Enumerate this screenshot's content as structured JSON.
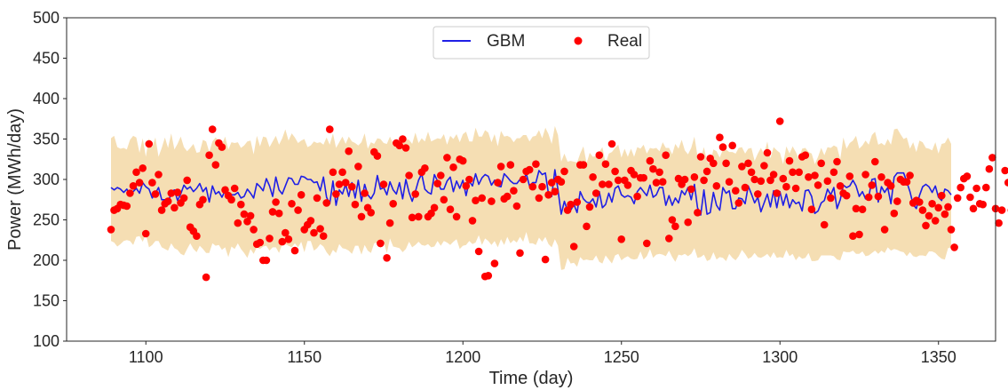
{
  "chart_data": {
    "type": "line",
    "title": "",
    "xlabel": "Time (day)",
    "ylabel": "Power (MWh/day)",
    "xlim": [
      1075,
      1368
    ],
    "ylim": [
      100,
      500
    ],
    "xticks": [
      1100,
      1150,
      1200,
      1250,
      1300,
      1350
    ],
    "yticks": [
      100,
      150,
      200,
      250,
      300,
      350,
      400,
      450,
      500
    ],
    "grid": false,
    "legend_position": "top-center",
    "colors": {
      "gbm": "#1f1fe6",
      "real": "#ff0000",
      "band": "#f5deb3"
    },
    "series": [
      {
        "name": "GBM",
        "kind": "line",
        "x_start": 1089,
        "x_step": 1,
        "values": [
          290,
          287,
          290,
          288,
          284,
          288,
          281,
          285,
          289,
          283,
          296,
          291,
          288,
          277,
          283,
          290,
          275,
          275,
          269,
          285,
          287,
          274,
          282,
          293,
          288,
          291,
          285,
          289,
          295,
          285,
          290,
          272,
          292,
          282,
          285,
          278,
          286,
          279,
          281,
          281,
          284,
          277,
          279,
          288,
          283,
          277,
          295,
          291,
          286,
          301,
          292,
          279,
          303,
          287,
          282,
          292,
          302,
          301,
          294,
          294,
          304,
          303,
          300,
          300,
          296,
          297,
          286,
          303,
          278,
          270,
          298,
          268,
          287,
          282,
          294,
          279,
          296,
          277,
          299,
          273,
          294,
          281,
          276,
          283,
          305,
          288,
          290,
          281,
          297,
          287,
          282,
          296,
          276,
          300,
          284,
          273,
          285,
          299,
          307,
          288,
          284,
          282,
          306,
          298,
          288,
          288,
          298,
          303,
          285,
          298,
          289,
          299,
          280,
          298,
          292,
          307,
          294,
          302,
          306,
          304,
          293,
          299,
          292,
          291,
          307,
          303,
          298,
          295,
          295,
          300,
          298,
          307,
          292,
          296,
          296,
          311,
          306,
          308,
          282,
          279,
          312,
          287,
          257,
          273,
          261,
          262,
          269,
          259,
          285,
          276,
          272,
          271,
          276,
          266,
          285,
          265,
          269,
          283,
          272,
          289,
          292,
          281,
          278,
          280,
          278,
          270,
          285,
          290,
          285,
          280,
          293,
          278,
          281,
          290,
          290,
          268,
          280,
          268,
          277,
          271,
          286,
          281,
          290,
          275,
          294,
          265,
          256,
          287,
          257,
          259,
          284,
          268,
          262,
          290,
          283,
          286,
          264,
          264,
          277,
          276,
          270,
          292,
          282,
          271,
          278,
          260,
          271,
          282,
          266,
          286,
          265,
          285,
          268,
          282,
          265,
          275,
          270,
          272,
          261,
          286,
          287,
          279,
          258,
          261,
          271,
          274,
          288,
          281,
          290,
          264,
          275,
          293,
          290,
          292,
          299,
          292,
          279,
          285,
          276,
          278,
          300,
          301,
          272,
          291,
          284,
          290,
          270,
          303,
          308,
          308,
          308,
          297,
          285,
          269,
          264,
          280,
          291,
          294,
          291,
          284,
          292,
          278,
          274,
          288,
          286,
          281
        ]
      },
      {
        "name": "Real",
        "kind": "scatter",
        "x_start": 1089,
        "x_step": 1,
        "values": [
          238,
          262,
          264,
          269,
          268,
          267,
          283,
          292,
          309,
          296,
          314,
          233,
          344,
          296,
          282,
          306,
          262,
          270,
          273,
          283,
          265,
          284,
          271,
          277,
          299,
          241,
          236,
          230,
          269,
          275,
          179,
          330,
          362,
          318,
          345,
          340,
          287,
          280,
          275,
          289,
          246,
          269,
          257,
          248,
          255,
          238,
          220,
          222,
          200,
          200,
          227,
          260,
          272,
          258,
          223,
          234,
          226,
          270,
          212,
          262,
          281,
          238,
          244,
          249,
          234,
          277,
          239,
          230,
          271,
          362,
          309,
          282,
          294,
          309,
          296,
          335,
          291,
          269,
          316,
          254,
          283,
          265,
          259,
          334,
          329,
          221,
          294,
          203,
          246,
          270,
          345,
          342,
          350,
          339,
          305,
          253,
          282,
          254,
          309,
          314,
          254,
          258,
          265,
          295,
          305,
          275,
          327,
          263,
          315,
          254,
          325,
          323,
          292,
          300,
          249,
          274,
          211,
          277,
          180,
          181,
          273,
          196,
          296,
          316,
          276,
          279,
          318,
          286,
          267,
          209,
          300,
          310,
          312,
          291,
          319,
          277,
          291,
          201,
          281,
          296,
          285,
          300,
          297,
          310,
          262,
          269,
          217,
          272,
          318,
          318,
          242,
          266,
          303,
          283,
          330,
          294,
          319,
          294,
          344,
          310,
          299,
          226,
          299,
          293,
          311,
          306,
          279,
          302,
          302,
          221,
          323,
          313,
          296,
          309,
          297,
          330,
          227,
          250,
          242,
          301,
          294,
          300,
          247,
          288,
          303,
          259,
          328,
          299,
          310,
          326,
          320,
          292,
          352,
          340,
          320,
          297,
          342,
          286,
          271,
          316,
          290,
          320,
          309,
          300,
          282,
          298,
          317,
          333,
          299,
          306,
          283,
          372,
          301,
          291,
          323,
          309,
          289,
          309,
          328,
          330,
          303,
          263,
          305,
          293,
          320,
          244,
          298,
          277,
          309,
          322,
          292,
          283,
          280,
          304,
          230,
          264,
          232,
          263,
          306,
          278,
          293,
          322,
          279,
          303,
          238,
          296,
          292,
          258,
          273,
          300,
          297,
          297,
          305,
          271,
          274,
          272,
          262,
          243,
          255,
          270,
          249,
          265,
          280,
          257,
          266,
          238,
          216,
          277,
          290,
          301,
          304,
          278,
          264,
          289,
          270,
          269,
          290,
          313,
          327,
          264,
          246,
          262,
          311,
          296,
          262,
          302,
          310,
          250,
          273,
          286,
          300,
          268,
          278,
          298,
          226,
          215,
          260,
          254,
          303,
          245,
          253,
          313,
          300,
          240,
          259,
          282,
          288,
          298,
          294,
          301,
          277,
          248,
          291,
          257,
          321,
          239,
          298,
          289,
          305,
          250,
          276,
          313,
          235,
          201,
          300,
          287,
          353,
          249,
          327,
          253,
          243,
          247,
          199,
          241,
          235,
          285,
          263,
          230,
          262,
          255,
          287,
          252,
          258,
          280,
          260,
          297,
          289,
          301,
          271,
          290,
          291,
          277,
          224,
          269,
          308,
          226,
          262,
          289,
          279,
          301,
          274,
          236,
          244,
          243,
          274,
          320,
          282,
          268,
          228,
          248,
          263,
          339,
          321,
          282,
          227,
          279,
          256,
          279,
          226,
          240,
          289,
          262,
          244,
          268,
          295,
          303,
          292,
          271,
          231,
          208,
          239,
          299,
          264,
          250,
          226,
          276,
          298,
          273,
          280,
          288,
          268,
          172,
          231,
          299,
          253,
          249,
          230,
          277,
          279,
          250,
          282,
          304,
          221,
          263,
          280,
          267,
          266,
          242,
          265,
          231,
          260,
          250,
          274,
          271,
          280,
          247,
          321,
          300,
          276,
          278,
          321,
          289,
          277,
          248,
          242,
          276,
          312,
          263,
          273,
          251,
          289,
          256,
          304,
          291,
          296,
          274,
          186,
          291,
          256,
          273,
          276,
          232,
          286,
          340,
          294,
          333,
          353,
          356,
          292,
          308,
          340,
          305,
          278,
          268,
          322,
          305,
          296,
          278,
          287,
          262,
          247,
          291,
          300,
          306,
          287,
          273,
          280,
          307,
          301,
          268,
          295,
          282,
          306,
          268,
          332,
          295,
          280,
          265,
          297,
          294,
          309,
          305,
          318,
          320,
          309,
          295,
          270,
          275,
          320,
          291,
          316,
          263,
          294,
          308
        ]
      }
    ],
    "band": {
      "name": "",
      "x_start": 1089,
      "x_step": 1,
      "upper": [
        351,
        354,
        340,
        338,
        339,
        337,
        349,
        354,
        352,
        333,
        351,
        328,
        351,
        340,
        352,
        328,
        339,
        352,
        339,
        357,
        337,
        344,
        353,
        340,
        335,
        339,
        344,
        333,
        334,
        349,
        347,
        334,
        347,
        352,
        348,
        343,
        353,
        337,
        346,
        345,
        346,
        339,
        342,
        347,
        348,
        331,
        354,
        341,
        353,
        352,
        340,
        347,
        354,
        343,
        351,
        362,
        348,
        357,
        352,
        345,
        348,
        350,
        340,
        342,
        347,
        345,
        346,
        343,
        352,
        343,
        357,
        339,
        346,
        353,
        344,
        353,
        347,
        345,
        342,
        346,
        357,
        338,
        346,
        344,
        351,
        350,
        345,
        344,
        353,
        344,
        348,
        347,
        346,
        350,
        349,
        344,
        358,
        345,
        351,
        347,
        359,
        347,
        349,
        351,
        350,
        356,
        343,
        354,
        350,
        356,
        346,
        356,
        359,
        347,
        347,
        364,
        353,
        353,
        361,
        358,
        346,
        356,
        341,
        360,
        353,
        354,
        352,
        346,
        351,
        351,
        355,
        355,
        347,
        353,
        354,
        361,
        351,
        364,
        356,
        344,
        366,
        355,
        322,
        332,
        322,
        323,
        322,
        321,
        332,
        341,
        320,
        333,
        328,
        329,
        334,
        340,
        320,
        332,
        334,
        339,
        343,
        327,
        338,
        328,
        338,
        328,
        340,
        338,
        343,
        332,
        339,
        338,
        339,
        335,
        346,
        339,
        339,
        331,
        344,
        338,
        349,
        336,
        331,
        339,
        353,
        329,
        326,
        340,
        322,
        320,
        337,
        335,
        327,
        337,
        337,
        334,
        334,
        332,
        339,
        340,
        332,
        338,
        339,
        323,
        332,
        339,
        331,
        347,
        326,
        340,
        336,
        333,
        319,
        341,
        332,
        341,
        334,
        325,
        338,
        339,
        334,
        332,
        319,
        328,
        339,
        330,
        340,
        339,
        342,
        340,
        325,
        352,
        338,
        345,
        348,
        354,
        338,
        342,
        348,
        343,
        355,
        359,
        343,
        345,
        342,
        350,
        343,
        362,
        363,
        356,
        350,
        352,
        338,
        346,
        334,
        348,
        346,
        339,
        338,
        336,
        346,
        332,
        344,
        345,
        352,
        344
      ],
      "lower": [
        224,
        222,
        217,
        220,
        224,
        225,
        224,
        219,
        229,
        230,
        223,
        232,
        216,
        219,
        224,
        224,
        216,
        214,
        212,
        221,
        215,
        213,
        208,
        206,
        214,
        221,
        214,
        210,
        218,
        214,
        209,
        209,
        221,
        218,
        219,
        213,
        216,
        204,
        217,
        214,
        221,
        214,
        209,
        203,
        214,
        208,
        216,
        214,
        217,
        218,
        212,
        216,
        216,
        209,
        220,
        220,
        218,
        216,
        221,
        216,
        223,
        210,
        224,
        224,
        212,
        215,
        220,
        217,
        210,
        205,
        213,
        209,
        220,
        215,
        214,
        212,
        208,
        218,
        218,
        207,
        219,
        212,
        209,
        221,
        222,
        215,
        223,
        209,
        227,
        217,
        216,
        215,
        210,
        214,
        223,
        216,
        219,
        223,
        219,
        218,
        220,
        216,
        217,
        224,
        218,
        224,
        222,
        219,
        223,
        226,
        214,
        218,
        219,
        224,
        220,
        222,
        231,
        219,
        227,
        224,
        219,
        224,
        216,
        226,
        219,
        229,
        221,
        225,
        222,
        229,
        223,
        235,
        221,
        221,
        219,
        228,
        223,
        229,
        220,
        216,
        226,
        218,
        188,
        189,
        203,
        196,
        197,
        192,
        204,
        200,
        201,
        200,
        200,
        206,
        198,
        196,
        206,
        201,
        196,
        206,
        208,
        200,
        203,
        205,
        202,
        201,
        202,
        211,
        201,
        205,
        214,
        203,
        207,
        208,
        207,
        205,
        212,
        204,
        198,
        207,
        206,
        208,
        205,
        208,
        215,
        203,
        204,
        207,
        199,
        201,
        210,
        201,
        204,
        203,
        199,
        208,
        203,
        200,
        205,
        213,
        208,
        202,
        204,
        209,
        204,
        203,
        205,
        208,
        203,
        210,
        203,
        204,
        203,
        213,
        205,
        208,
        200,
        205,
        202,
        203,
        209,
        199,
        199,
        200,
        206,
        206,
        206,
        206,
        205,
        201,
        200,
        211,
        210,
        210,
        212,
        208,
        208,
        211,
        205,
        206,
        209,
        212,
        208,
        212,
        209,
        216,
        212,
        214,
        213,
        211,
        210,
        205,
        210,
        205,
        204,
        206,
        206,
        205,
        211,
        211,
        209,
        205,
        202,
        201,
        215,
        216
      ]
    }
  }
}
